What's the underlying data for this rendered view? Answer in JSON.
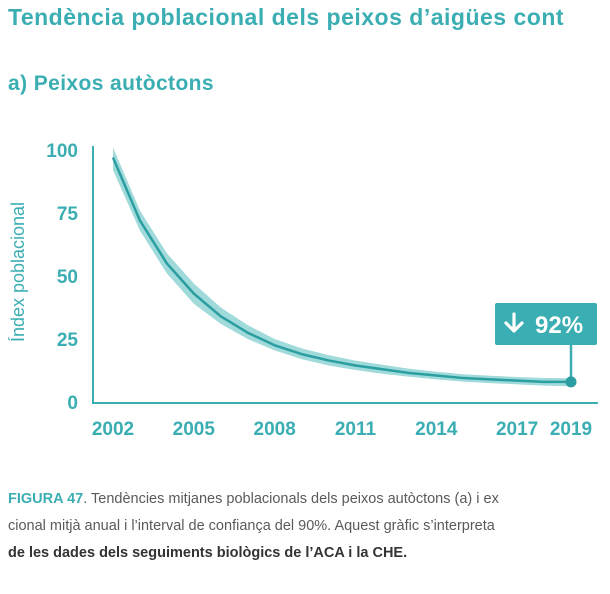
{
  "header": {
    "title": "Tendència poblacional dels peixos d’aigües cont",
    "subtitle": "a) Peixos autòctons"
  },
  "colors": {
    "accent": "#3aaeb2",
    "line": "#2a9ea1",
    "band": "#8fd3d4",
    "text": "#5a5a5a"
  },
  "chart_data": {
    "type": "line",
    "ylabel": "Índex poblacional",
    "xlabel": "",
    "ylim": [
      0,
      100
    ],
    "yticks": [
      0,
      25,
      50,
      75,
      100
    ],
    "xlim": [
      2002,
      2019
    ],
    "xticks": [
      2002,
      2005,
      2008,
      2011,
      2014,
      2017,
      2019
    ],
    "series": [
      {
        "x": [
          2002,
          2003,
          2004,
          2005,
          2006,
          2007,
          2008,
          2009,
          2010,
          2011,
          2012,
          2013,
          2014,
          2015,
          2016,
          2017,
          2018,
          2019
        ],
        "values": [
          97,
          72,
          55,
          43,
          34,
          27.5,
          22.5,
          19,
          16.5,
          14.5,
          13,
          11.5,
          10.5,
          9.5,
          9,
          8.5,
          8,
          8
        ],
        "ci_low": [
          92,
          68,
          51,
          39,
          31,
          25,
          20.5,
          17,
          14.5,
          12.7,
          11.2,
          10,
          9,
          8.1,
          7.5,
          7,
          6.5,
          6.2
        ],
        "ci_high": [
          101,
          76,
          59,
          47,
          37.5,
          30.5,
          25,
          21.3,
          18.6,
          16.4,
          14.8,
          13.2,
          12,
          11,
          10.4,
          9.9,
          9.5,
          9.4
        ]
      }
    ],
    "annotation": {
      "text": "92%",
      "arrow": "down",
      "x": 2019,
      "y": 8
    }
  },
  "caption": {
    "fig_label": "FIGURA 47",
    "line1": ". Tendències mitjanes poblacionals dels peixos autòctons (a) i ex",
    "line2": "cional mitjà anual i l’interval de confiança del 90%. Aquest gràfic s’interpreta",
    "line3": "de les dades dels seguiments biològics de l’ACA i la CHE."
  }
}
